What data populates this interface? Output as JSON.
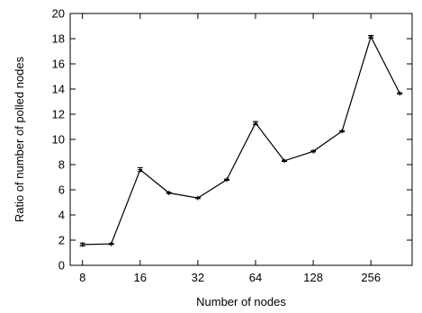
{
  "chart_data": {
    "type": "line",
    "xlabel": "Number of nodes",
    "ylabel": "Ratio of number of polled nodes",
    "x_scale": "log2",
    "xlim": [
      6.9,
      420
    ],
    "ylim": [
      0,
      20
    ],
    "x_ticks": [
      8,
      16,
      32,
      64,
      128,
      256
    ],
    "y_ticks": [
      0,
      2,
      4,
      6,
      8,
      10,
      12,
      14,
      16,
      18,
      20
    ],
    "grid": false,
    "legend": "none",
    "series": [
      {
        "color": "#000000",
        "marker": "plus",
        "points": [
          {
            "x": 8,
            "y": 1.65,
            "err": 0.12
          },
          {
            "x": 11.3,
            "y": 1.7,
            "err": 0.05
          },
          {
            "x": 16,
            "y": 7.6,
            "err": 0.15
          },
          {
            "x": 22.6,
            "y": 5.75,
            "err": 0.05
          },
          {
            "x": 32,
            "y": 5.35,
            "err": 0.05
          },
          {
            "x": 45.3,
            "y": 6.8,
            "err": 0.05
          },
          {
            "x": 64,
            "y": 11.3,
            "err": 0.12
          },
          {
            "x": 90.5,
            "y": 8.3,
            "err": 0.05
          },
          {
            "x": 128,
            "y": 9.05,
            "err": 0.05
          },
          {
            "x": 181,
            "y": 10.65,
            "err": 0.05
          },
          {
            "x": 256,
            "y": 18.15,
            "err": 0.1
          },
          {
            "x": 362,
            "y": 13.65,
            "err": 0.05
          }
        ]
      }
    ]
  }
}
